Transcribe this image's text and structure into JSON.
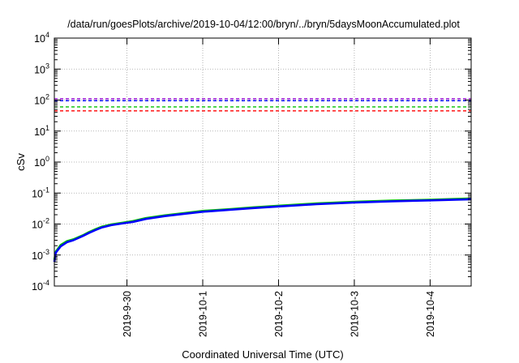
{
  "chart_data": {
    "type": "line",
    "title": "/data/run/goesPlots/archive/2019-10-04/12:00/bryn/../bryn/5daysMoonAccumulated.plot",
    "xlabel": "Coordinated Universal Time (UTC)",
    "ylabel": "cSv",
    "x_scale": "time",
    "y_scale": "log",
    "xlim": [
      "2019-09-29T01:00",
      "2019-10-04T13:00"
    ],
    "ylim": [
      0.0001,
      10000
    ],
    "x_ticks": [
      "2019-9-30",
      "2019-10-1",
      "2019-10-2",
      "2019-10-3",
      "2019-10-4"
    ],
    "x_tick_values": [
      "2019-09-30T00:00",
      "2019-10-01T00:00",
      "2019-10-02T00:00",
      "2019-10-03T00:00",
      "2019-10-04T00:00"
    ],
    "y_ticks": [
      {
        "base": "10",
        "exp": "-4",
        "value": 0.0001
      },
      {
        "base": "10",
        "exp": "-3",
        "value": 0.001
      },
      {
        "base": "10",
        "exp": "-2",
        "value": 0.01
      },
      {
        "base": "10",
        "exp": "-1",
        "value": 0.1
      },
      {
        "base": "10",
        "exp": "0",
        "value": 1
      },
      {
        "base": "10",
        "exp": "1",
        "value": 10
      },
      {
        "base": "10",
        "exp": "2",
        "value": 100
      },
      {
        "base": "10",
        "exp": "3",
        "value": 1000
      },
      {
        "base": "10",
        "exp": "4",
        "value": 10000
      }
    ],
    "grid": true,
    "legend": "none",
    "threshold_lines": [
      {
        "value": 110,
        "color": "#9400d3",
        "style": "dashed"
      },
      {
        "value": 95,
        "color": "#0000ff",
        "style": "dashed"
      },
      {
        "value": 60,
        "color": "#00c000",
        "style": "dashed"
      },
      {
        "value": 45,
        "color": "#ff0000",
        "style": "dashed"
      }
    ],
    "series": [
      {
        "color": "#00c000",
        "x": [
          "2019-09-29T01:00",
          "2019-09-29T01:30",
          "2019-09-29T03:00",
          "2019-09-29T05:00",
          "2019-09-29T07:00",
          "2019-09-29T10:00",
          "2019-09-29T12:00",
          "2019-09-29T14:00",
          "2019-09-29T16:00",
          "2019-09-29T19:00",
          "2019-09-29T23:00",
          "2019-09-30T02:00",
          "2019-09-30T06:00",
          "2019-09-30T12:00",
          "2019-09-30T18:00",
          "2019-10-01T00:00",
          "2019-10-01T08:00",
          "2019-10-01T16:00",
          "2019-10-02T00:00",
          "2019-10-02T12:00",
          "2019-10-03T00:00",
          "2019-10-03T12:00",
          "2019-10-04T00:00",
          "2019-10-04T13:00"
        ],
        "y": [
          0.0007,
          0.0013,
          0.0021,
          0.0028,
          0.0032,
          0.0043,
          0.0055,
          0.0068,
          0.0082,
          0.0097,
          0.0112,
          0.0125,
          0.0155,
          0.019,
          0.0225,
          0.0265,
          0.03,
          0.0345,
          0.039,
          0.046,
          0.052,
          0.057,
          0.061,
          0.067
        ]
      },
      {
        "color": "#0000ff",
        "x": [
          "2019-09-29T01:00",
          "2019-09-29T01:30",
          "2019-09-29T03:00",
          "2019-09-29T05:00",
          "2019-09-29T07:00",
          "2019-09-29T10:00",
          "2019-09-29T12:00",
          "2019-09-29T14:00",
          "2019-09-29T16:00",
          "2019-09-29T19:00",
          "2019-09-29T23:00",
          "2019-09-30T02:00",
          "2019-09-30T06:00",
          "2019-09-30T12:00",
          "2019-09-30T18:00",
          "2019-10-01T00:00",
          "2019-10-01T08:00",
          "2019-10-01T16:00",
          "2019-10-02T00:00",
          "2019-10-02T12:00",
          "2019-10-03T00:00",
          "2019-10-03T12:00",
          "2019-10-04T00:00",
          "2019-10-04T13:00"
        ],
        "y": [
          0.0006,
          0.0012,
          0.0019,
          0.0026,
          0.003,
          0.0041,
          0.0052,
          0.0064,
          0.0077,
          0.0092,
          0.0106,
          0.0118,
          0.0146,
          0.018,
          0.0213,
          0.025,
          0.0285,
          0.0328,
          0.037,
          0.0437,
          0.0495,
          0.0542,
          0.058,
          0.063
        ]
      }
    ]
  }
}
